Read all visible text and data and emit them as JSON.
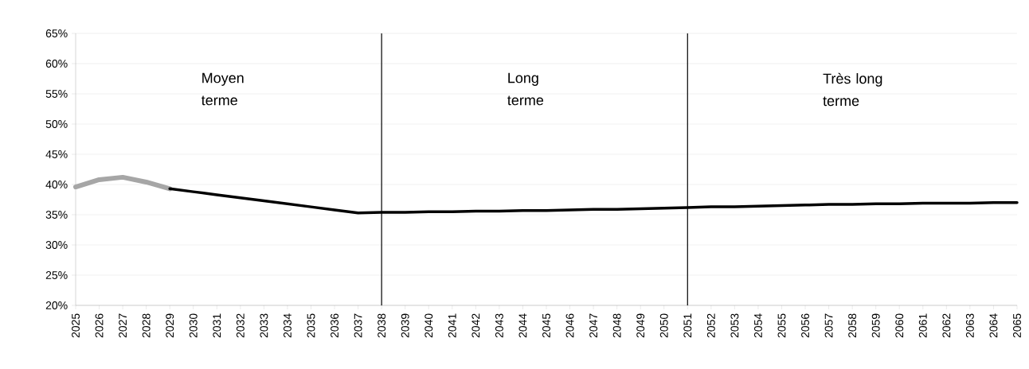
{
  "chart_data": {
    "type": "line",
    "categories": [
      "2025",
      "2026",
      "2027",
      "2028",
      "2029",
      "2030",
      "2031",
      "2032",
      "2033",
      "2034",
      "2035",
      "2036",
      "2037",
      "2038",
      "2039",
      "2040",
      "2041",
      "2042",
      "2043",
      "2044",
      "2045",
      "2046",
      "2047",
      "2048",
      "2049",
      "2050",
      "2051",
      "2052",
      "2053",
      "2054",
      "2055",
      "2056",
      "2057",
      "2058",
      "2059",
      "2060",
      "2061",
      "2062",
      "2063",
      "2064",
      "2065"
    ],
    "series": [
      {
        "color": "#a6a6a6",
        "values": [
          39.6,
          40.8,
          41.2,
          40.4,
          39.3,
          null,
          null,
          null,
          null,
          null,
          null,
          null,
          null,
          null,
          null,
          null,
          null,
          null,
          null,
          null,
          null,
          null,
          null,
          null,
          null,
          null,
          null,
          null,
          null,
          null,
          null,
          null,
          null,
          null,
          null,
          null,
          null,
          null,
          null,
          null,
          null
        ]
      },
      {
        "color": "#000000",
        "values": [
          null,
          null,
          null,
          null,
          39.3,
          38.8,
          38.3,
          37.8,
          37.3,
          36.8,
          36.3,
          35.8,
          35.3,
          35.4,
          35.4,
          35.5,
          35.5,
          35.6,
          35.6,
          35.7,
          35.7,
          35.8,
          35.9,
          35.9,
          36.0,
          36.1,
          36.2,
          36.3,
          36.3,
          36.4,
          36.5,
          36.6,
          36.7,
          36.7,
          36.8,
          36.8,
          36.9,
          36.9,
          36.9,
          37.0,
          37.0
        ]
      }
    ],
    "ylim": [
      20,
      65
    ],
    "yticks": [
      {
        "value": 20,
        "label": "20%"
      },
      {
        "value": 25,
        "label": "25%"
      },
      {
        "value": 30,
        "label": "30%"
      },
      {
        "value": 35,
        "label": "35%"
      },
      {
        "value": 40,
        "label": "40%"
      },
      {
        "value": 45,
        "label": "45%"
      },
      {
        "value": 50,
        "label": "50%"
      },
      {
        "value": 55,
        "label": "55%"
      },
      {
        "value": 60,
        "label": "60%"
      },
      {
        "value": 65,
        "label": "65%"
      }
    ],
    "grid": "y",
    "legend": false,
    "marker": "none",
    "line_style": "solid",
    "ref_lines": [
      {
        "axis": "x",
        "value": "2038",
        "color": "#000000"
      },
      {
        "axis": "x",
        "value": "2051",
        "color": "#000000"
      }
    ],
    "annotations": [
      "Moyen terme",
      "Long terme",
      "Très long terme"
    ]
  }
}
